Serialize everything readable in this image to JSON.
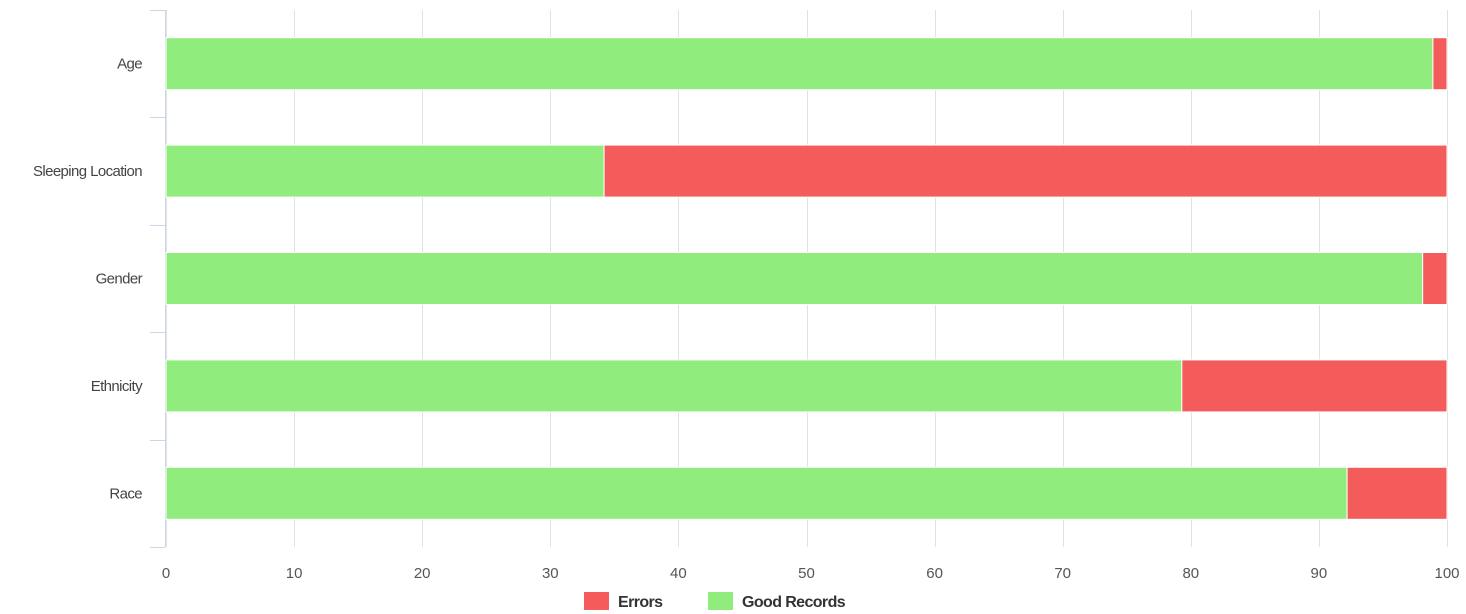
{
  "chart_data": {
    "type": "bar",
    "orientation": "horizontal",
    "stacked": true,
    "categories": [
      "Age",
      "Sleeping Location",
      "Gender",
      "Ethnicity",
      "Race"
    ],
    "series": [
      {
        "name": "Good Records",
        "color": "#90ec7d",
        "values": [
          98.9,
          34.2,
          98.1,
          79.3,
          92.2
        ]
      },
      {
        "name": "Errors",
        "color": "#f45b5b",
        "values": [
          1.1,
          65.8,
          1.9,
          20.7,
          7.8
        ]
      }
    ],
    "legend_order": [
      "Errors",
      "Good Records"
    ],
    "xlim": [
      0,
      100
    ],
    "xticks": [
      0,
      10,
      20,
      30,
      40,
      50,
      60,
      70,
      80,
      90,
      100
    ],
    "grid": true,
    "legend_position": "bottom-center",
    "title": "",
    "xlabel": "",
    "ylabel": ""
  }
}
